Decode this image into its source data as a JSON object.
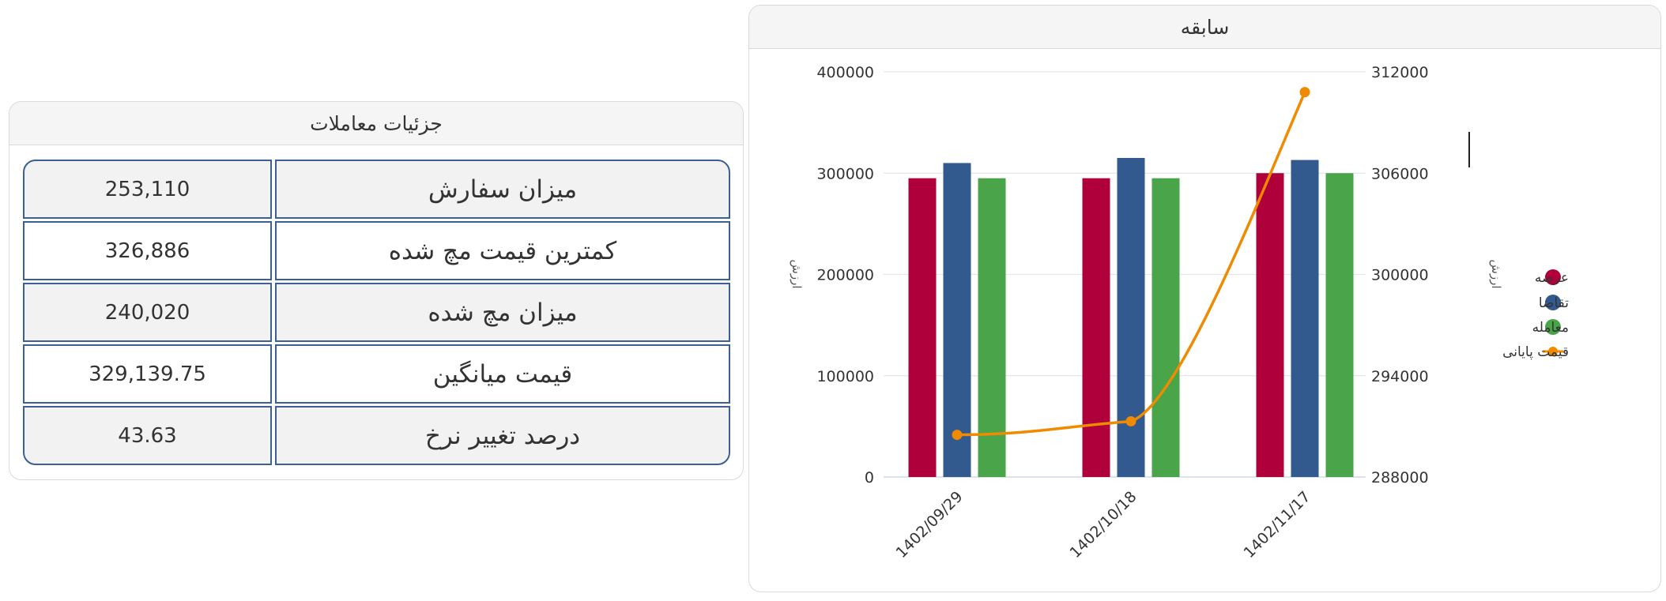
{
  "details": {
    "title": "جزئیات معاملات",
    "rows": [
      {
        "label": "میزان سفارش",
        "value": "253,110"
      },
      {
        "label": "کمترین قیمت مچ شده",
        "value": "326,886"
      },
      {
        "label": "میزان مچ شده",
        "value": "240,020"
      },
      {
        "label": "قیمت میانگین",
        "value": "329,139.75"
      },
      {
        "label": "درصد تغییر نرخ",
        "value": "43.63"
      }
    ]
  },
  "history": {
    "title": "سابقه"
  },
  "chart_data": {
    "type": "bar",
    "categories": [
      "1402/09/29",
      "1402/10/18",
      "1402/11/17"
    ],
    "series": [
      {
        "name": "عرضه",
        "type": "bar",
        "axis": "left",
        "color": "#b0003c",
        "values": [
          295000,
          295000,
          300000
        ]
      },
      {
        "name": "تقاضا",
        "type": "bar",
        "axis": "left",
        "color": "#335a8e",
        "values": [
          310000,
          315000,
          313000
        ]
      },
      {
        "name": "معامله",
        "type": "bar",
        "axis": "left",
        "color": "#4aa54a",
        "values": [
          295000,
          295000,
          300000
        ]
      },
      {
        "name": "قیمت پایانی",
        "type": "line",
        "axis": "right",
        "color": "#f08a00",
        "values": [
          290500,
          291300,
          310800
        ]
      }
    ],
    "y_left": {
      "ticks": [
        "400000",
        "300000",
        "200000",
        "100000",
        "0"
      ],
      "range": [
        0,
        400000
      ],
      "label": "ارزش"
    },
    "y_right": {
      "ticks": [
        "312000",
        "306000",
        "300000",
        "294000",
        "288000"
      ],
      "range": [
        288000,
        312000
      ],
      "label": "ارزش"
    },
    "grid": true,
    "legend_position": "right"
  }
}
